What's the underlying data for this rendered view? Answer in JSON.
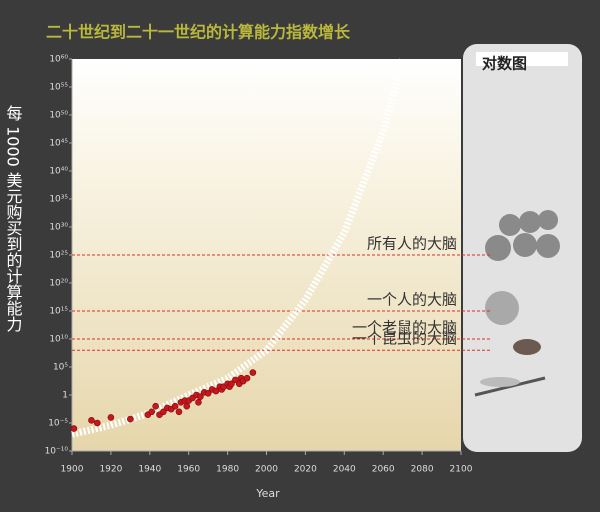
{
  "chart_data": {
    "type": "scatter",
    "title": "二十世纪到二十一世纪的计算能力指数增长",
    "y_label": "每 1000 美元购买到的计算能力",
    "x_label": "Year",
    "panel_label": "对数图",
    "log_y": true,
    "xlim": [
      1900,
      2100
    ],
    "xticks": [
      1900,
      1920,
      1940,
      1960,
      1980,
      2000,
      2020,
      2040,
      2060,
      2080,
      2100
    ],
    "ylim": [
      1e-10,
      1e+60
    ],
    "yticks": [
      {
        "value": 1e-10,
        "label": "10⁻¹⁰"
      },
      {
        "value": 1e-05,
        "label": "10⁻⁵"
      },
      1,
      {
        "value": 100000.0,
        "label": "10⁵"
      },
      {
        "value": 10000000000.0,
        "label": "10¹⁰"
      },
      {
        "value": 1000000000000000.0,
        "label": "10¹⁵"
      },
      {
        "value": 1e+20,
        "label": "10²⁰"
      },
      {
        "value": 1e+25,
        "label": "10²⁵"
      },
      {
        "value": 1e+30,
        "label": "10³⁰"
      },
      {
        "value": 1e+35,
        "label": "10³⁵"
      },
      {
        "value": 1e+40,
        "label": "10⁴⁰"
      },
      {
        "value": 1e+45,
        "label": "10⁴⁵"
      },
      {
        "value": 1e+50,
        "label": "10⁵⁰"
      },
      {
        "value": 1e+55,
        "label": "10⁵⁵"
      },
      {
        "value": 1e+60,
        "label": "10⁶⁰"
      }
    ],
    "trend": {
      "color": "#ffffff",
      "x": [
        1900,
        1920,
        1940,
        1960,
        1980,
        2000,
        2020,
        2040,
        2060,
        2070
      ],
      "values": [
        1e-07,
        4e-06,
        0.0006,
        1,
        1000.0,
        100000000.0,
        1e+17,
        1e+29,
        1e+47,
        1e+60
      ]
    },
    "points": {
      "color": "#c8161d",
      "x": [
        1901,
        1910,
        1913,
        1920,
        1930,
        1939,
        1941,
        1943,
        1945,
        1947,
        1949,
        1951,
        1953,
        1955,
        1956,
        1958,
        1959,
        1960,
        1962,
        1964,
        1965,
        1966,
        1968,
        1970,
        1972,
        1974,
        1976,
        1977,
        1978,
        1980,
        1981,
        1982,
        1984,
        1986,
        1987,
        1988,
        1990,
        1993
      ],
      "values": [
        1e-06,
        3e-05,
        1e-05,
        0.0001,
        5e-05,
        0.0003,
        0.001,
        0.01,
        0.0003,
        0.001,
        0.005,
        0.003,
        0.01,
        0.001,
        0.05,
        0.1,
        0.01,
        0.1,
        0.3,
        1,
        0.05,
        0.5,
        3,
        2,
        10,
        5,
        30,
        10,
        30,
        100,
        30,
        100,
        500,
        100,
        1000,
        300,
        1000,
        10000
      ]
    },
    "reference_lines": [
      {
        "label": "所有人的大脑",
        "value": 1e+25,
        "color": "#d9302c"
      },
      {
        "label": "一个人的大脑",
        "value": 1000000000000000.0,
        "color": "#d9302c"
      },
      {
        "label": "一个老鼠的大脑",
        "value": 10000000000.0,
        "color": "#d9302c"
      },
      {
        "label": "一个昆虫的大脑",
        "value": 100000000.0,
        "color": "#d9302c"
      }
    ]
  }
}
